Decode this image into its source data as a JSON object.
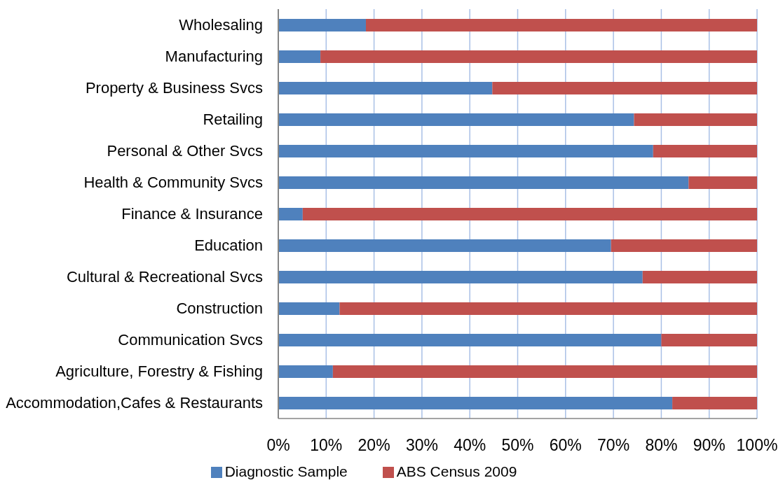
{
  "chart_data": {
    "type": "bar",
    "orientation": "horizontal",
    "stacked": true,
    "categories": [
      "Wholesaling",
      "Manufacturing",
      "Property & Business Svcs",
      "Retailing",
      "Personal & Other Svcs",
      "Health & Community Svcs",
      "Finance & Insurance",
      "Education",
      "Cultural & Recreational Svcs",
      "Construction",
      "Communication Svcs",
      "Agriculture, Forestry & Fishing",
      "Accommodation,Cafes & Restaurants"
    ],
    "series": [
      {
        "name": "Diagnostic Sample",
        "color": "#4f81bd",
        "values": [
          18.3,
          8.8,
          44.7,
          74.3,
          78.3,
          85.7,
          5.1,
          69.5,
          76.1,
          12.8,
          80.0,
          11.4,
          82.3
        ]
      },
      {
        "name": "ABS Census 2009",
        "color": "#c0504d",
        "values": [
          81.7,
          91.2,
          55.3,
          25.7,
          21.7,
          14.3,
          94.9,
          30.5,
          23.9,
          87.2,
          20.0,
          88.6,
          17.7
        ]
      }
    ],
    "xlim": [
      0,
      100
    ],
    "xticks": [
      {
        "value": 0,
        "label": "0%"
      },
      {
        "value": 10,
        "label": "10%"
      },
      {
        "value": 20,
        "label": "20%"
      },
      {
        "value": 30,
        "label": "30%"
      },
      {
        "value": 40,
        "label": "40%"
      },
      {
        "value": 50,
        "label": "50%"
      },
      {
        "value": 60,
        "label": "60%"
      },
      {
        "value": 70,
        "label": "70%"
      },
      {
        "value": 80,
        "label": "80%"
      },
      {
        "value": 90,
        "label": "90%"
      },
      {
        "value": 100,
        "label": "100%"
      }
    ],
    "grid": "x",
    "legend": "bottom"
  }
}
